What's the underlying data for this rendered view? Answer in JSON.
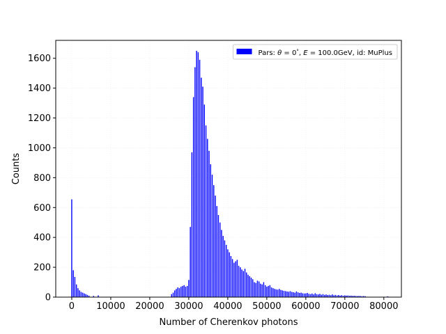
{
  "chart_data": {
    "type": "bar",
    "xlabel": "Number of Cherenkov photons",
    "ylabel": "Counts",
    "xlim": [
      -4100,
      84500
    ],
    "ylim": [
      0,
      1720
    ],
    "grid": true,
    "legend": {
      "placement": "top-right",
      "color": "#0000ff",
      "prefix": "Pars: ",
      "theta_symbol": "θ",
      "equals": " = ",
      "theta_value": "0",
      "degree": "°",
      "sep1": ", ",
      "energy_symbol": "E",
      "energy_value": "100.0GeV",
      "suffix": ", id: MuPlus"
    },
    "bar_color": "#0000ff",
    "bar_width": 250,
    "x_ticks": [
      0,
      10000,
      20000,
      30000,
      40000,
      50000,
      60000,
      70000,
      80000
    ],
    "x_tick_labels": [
      "0",
      "10000",
      "20000",
      "30000",
      "40000",
      "50000",
      "60000",
      "70000",
      "80000"
    ],
    "y_ticks": [
      0,
      200,
      400,
      600,
      800,
      1000,
      1200,
      1400,
      1600
    ],
    "y_tick_labels": [
      "0",
      "200",
      "400",
      "600",
      "800",
      "1000",
      "1200",
      "1400",
      "1600"
    ],
    "x": [
      0,
      400,
      800,
      1200,
      1600,
      2000,
      2400,
      2800,
      3200,
      3600,
      4000,
      4400,
      5600,
      6800,
      25600,
      26000,
      26400,
      26800,
      27200,
      27600,
      28000,
      28400,
      28800,
      29200,
      29600,
      30000,
      30400,
      30800,
      31200,
      31600,
      32000,
      32400,
      32800,
      33200,
      33600,
      34000,
      34400,
      34800,
      35200,
      35600,
      36000,
      36400,
      36800,
      37200,
      37600,
      38000,
      38400,
      38800,
      39200,
      39600,
      40000,
      40400,
      40800,
      41200,
      41600,
      42000,
      42400,
      42800,
      43200,
      43600,
      44000,
      44400,
      44800,
      45200,
      45600,
      46000,
      46400,
      46800,
      47200,
      47600,
      48000,
      48400,
      48800,
      49200,
      49600,
      50000,
      50400,
      50800,
      51200,
      51600,
      52000,
      52400,
      52800,
      53200,
      53600,
      54000,
      54400,
      54800,
      55200,
      55600,
      56000,
      56400,
      56800,
      57200,
      57600,
      58000,
      58400,
      58800,
      59200,
      59600,
      60000,
      60400,
      60800,
      61200,
      61600,
      62000,
      62400,
      62800,
      63200,
      63600,
      64000,
      64400,
      64800,
      65200,
      65600,
      66000,
      66400,
      66800,
      67200,
      67600,
      68000,
      68400,
      68800,
      69200,
      69600,
      70000,
      70400,
      70800,
      71200,
      71600,
      72000,
      72400,
      72800,
      73200,
      73600,
      74000,
      74400,
      74800,
      75200,
      81000
    ],
    "values": [
      655,
      180,
      135,
      85,
      60,
      45,
      35,
      30,
      25,
      20,
      15,
      10,
      8,
      12,
      20,
      30,
      45,
      55,
      65,
      60,
      70,
      75,
      80,
      70,
      75,
      115,
      470,
      970,
      1340,
      1540,
      1650,
      1640,
      1590,
      1470,
      1410,
      1290,
      1150,
      1060,
      980,
      890,
      820,
      750,
      680,
      610,
      550,
      500,
      450,
      410,
      380,
      350,
      320,
      300,
      275,
      255,
      230,
      240,
      250,
      210,
      200,
      185,
      175,
      190,
      165,
      150,
      140,
      130,
      120,
      100,
      95,
      110,
      105,
      90,
      85,
      100,
      80,
      70,
      75,
      80,
      65,
      60,
      55,
      52,
      50,
      55,
      48,
      45,
      42,
      40,
      38,
      36,
      40,
      35,
      33,
      30,
      38,
      32,
      28,
      30,
      26,
      24,
      25,
      28,
      22,
      20,
      24,
      18,
      26,
      20,
      18,
      22,
      16,
      20,
      15,
      18,
      14,
      16,
      13,
      18,
      12,
      15,
      11,
      14,
      10,
      13,
      9,
      12,
      10,
      11,
      9,
      10,
      8,
      9,
      8,
      7,
      8,
      7,
      6,
      7,
      6,
      5
    ]
  }
}
